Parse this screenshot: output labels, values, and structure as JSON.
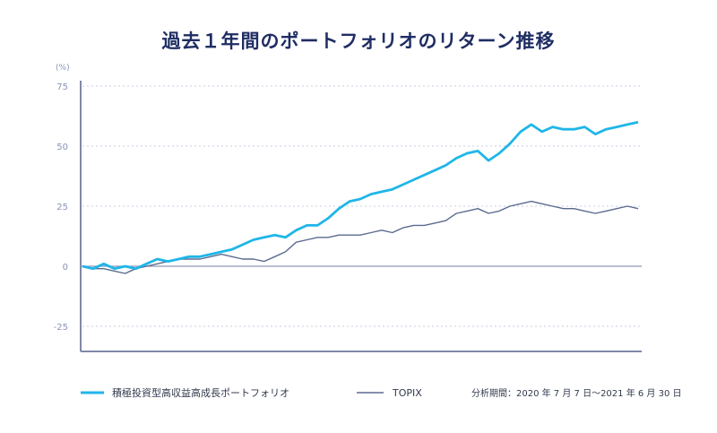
{
  "title": "過去１年間のポートフォリオのリターン推移",
  "period_note": "分析期間：2020 年 7 月 7 日〜2021 年 6 月 30 日",
  "chart_data": {
    "type": "line",
    "title": "過去１年間のポートフォリオのリターン推移",
    "ylabel": "(%)",
    "ylim": [
      -35,
      78
    ],
    "yticks": [
      75,
      50,
      25,
      0,
      -25
    ],
    "ytick_labels": [
      "75",
      "50",
      "25",
      "0",
      "-25"
    ],
    "grid": true,
    "x_range": [
      "2020-07-07",
      "2021-06-30"
    ],
    "x_index": [
      0,
      1,
      2,
      3,
      4,
      5,
      6,
      7,
      8,
      9,
      10,
      11,
      12,
      13,
      14,
      15,
      16,
      17,
      18,
      19,
      20,
      21,
      22,
      23,
      24,
      25,
      26,
      27,
      28,
      29,
      30,
      31,
      32,
      33,
      34,
      35,
      36,
      37,
      38,
      39,
      40,
      41,
      42,
      43,
      44,
      45,
      46,
      47,
      48,
      49,
      50,
      51,
      52
    ],
    "series": [
      {
        "name": "積極投資型高収益高成長ポートフォリオ",
        "color": "#1fb6e8",
        "values": [
          0,
          -1,
          1,
          -1,
          0,
          -1,
          1,
          3,
          2,
          3,
          4,
          4,
          5,
          6,
          7,
          9,
          11,
          12,
          13,
          12,
          15,
          17,
          17,
          20,
          24,
          27,
          28,
          30,
          31,
          32,
          34,
          36,
          38,
          40,
          42,
          45,
          47,
          48,
          44,
          47,
          51,
          56,
          59,
          56,
          58,
          57,
          57,
          58,
          55,
          57,
          58,
          59,
          60
        ]
      },
      {
        "name": "TOPIX",
        "color": "#5b6a8f",
        "values": [
          0,
          -1,
          -1,
          -2,
          -3,
          -1,
          0,
          1,
          2,
          3,
          3,
          3,
          4,
          5,
          4,
          3,
          3,
          2,
          4,
          6,
          10,
          11,
          12,
          12,
          13,
          13,
          13,
          14,
          15,
          14,
          16,
          17,
          17,
          18,
          19,
          22,
          23,
          24,
          22,
          23,
          25,
          26,
          27,
          26,
          25,
          24,
          24,
          23,
          22,
          23,
          24,
          25,
          24
        ]
      }
    ],
    "legend_position": "bottom"
  }
}
